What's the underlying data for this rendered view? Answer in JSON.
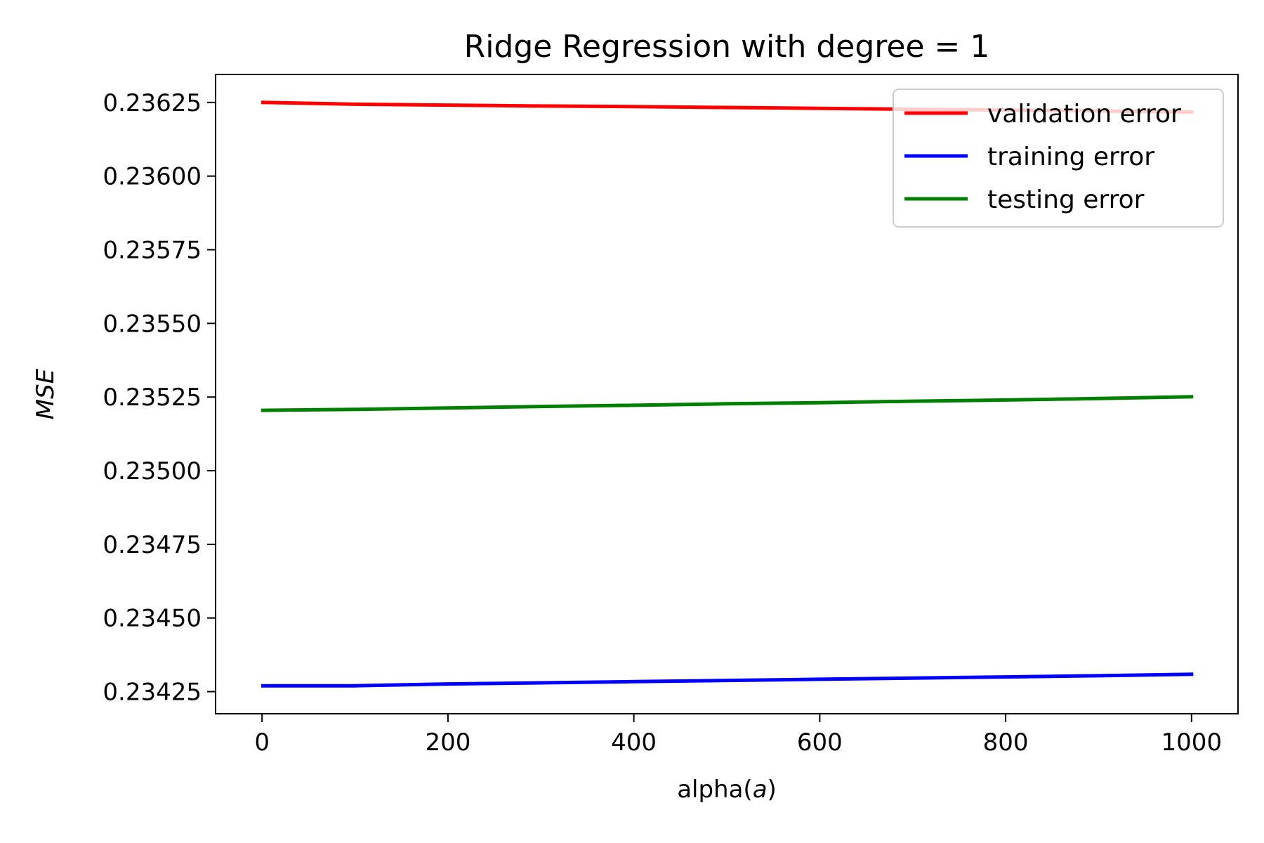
{
  "chart_data": {
    "type": "line",
    "title": "Ridge Regression with degree = 1",
    "xlabel_prefix": "alpha(",
    "xlabel_var": "a",
    "xlabel_suffix": ")",
    "ylabel": "MSE",
    "x_ticks": [
      0,
      200,
      400,
      600,
      800,
      1000
    ],
    "x_tick_labels": [
      "0",
      "200",
      "400",
      "600",
      "800",
      "1000"
    ],
    "y_ticks": [
      0.23425,
      0.2345,
      0.23475,
      0.235,
      0.23525,
      0.2355,
      0.23575,
      0.236,
      0.23625
    ],
    "y_tick_labels": [
      "0.23425",
      "0.23450",
      "0.23475",
      "0.23500",
      "0.23525",
      "0.23550",
      "0.23575",
      "0.23600",
      "0.23625"
    ],
    "xlim": [
      -50,
      1050
    ],
    "ylim": [
      0.234175,
      0.236345
    ],
    "grid": false,
    "legend_position": "top-right",
    "x": [
      1,
      100,
      200,
      300,
      400,
      500,
      600,
      700,
      800,
      900,
      1000
    ],
    "series": [
      {
        "name": "validation error",
        "color": "#ff0000",
        "values": [
          0.23625,
          0.236244,
          0.236241,
          0.236238,
          0.236236,
          0.236233,
          0.23623,
          0.236227,
          0.236224,
          0.236221,
          0.236218
        ]
      },
      {
        "name": "training error",
        "color": "#0000ff",
        "values": [
          0.23427,
          0.23427,
          0.234276,
          0.23428,
          0.234284,
          0.234288,
          0.234292,
          0.234296,
          0.2343,
          0.234304,
          0.234309
        ]
      },
      {
        "name": "testing error",
        "color": "#008000",
        "values": [
          0.235205,
          0.235208,
          0.235213,
          0.235218,
          0.235222,
          0.235227,
          0.235231,
          0.235236,
          0.23524,
          0.235245,
          0.235251
        ]
      }
    ]
  }
}
